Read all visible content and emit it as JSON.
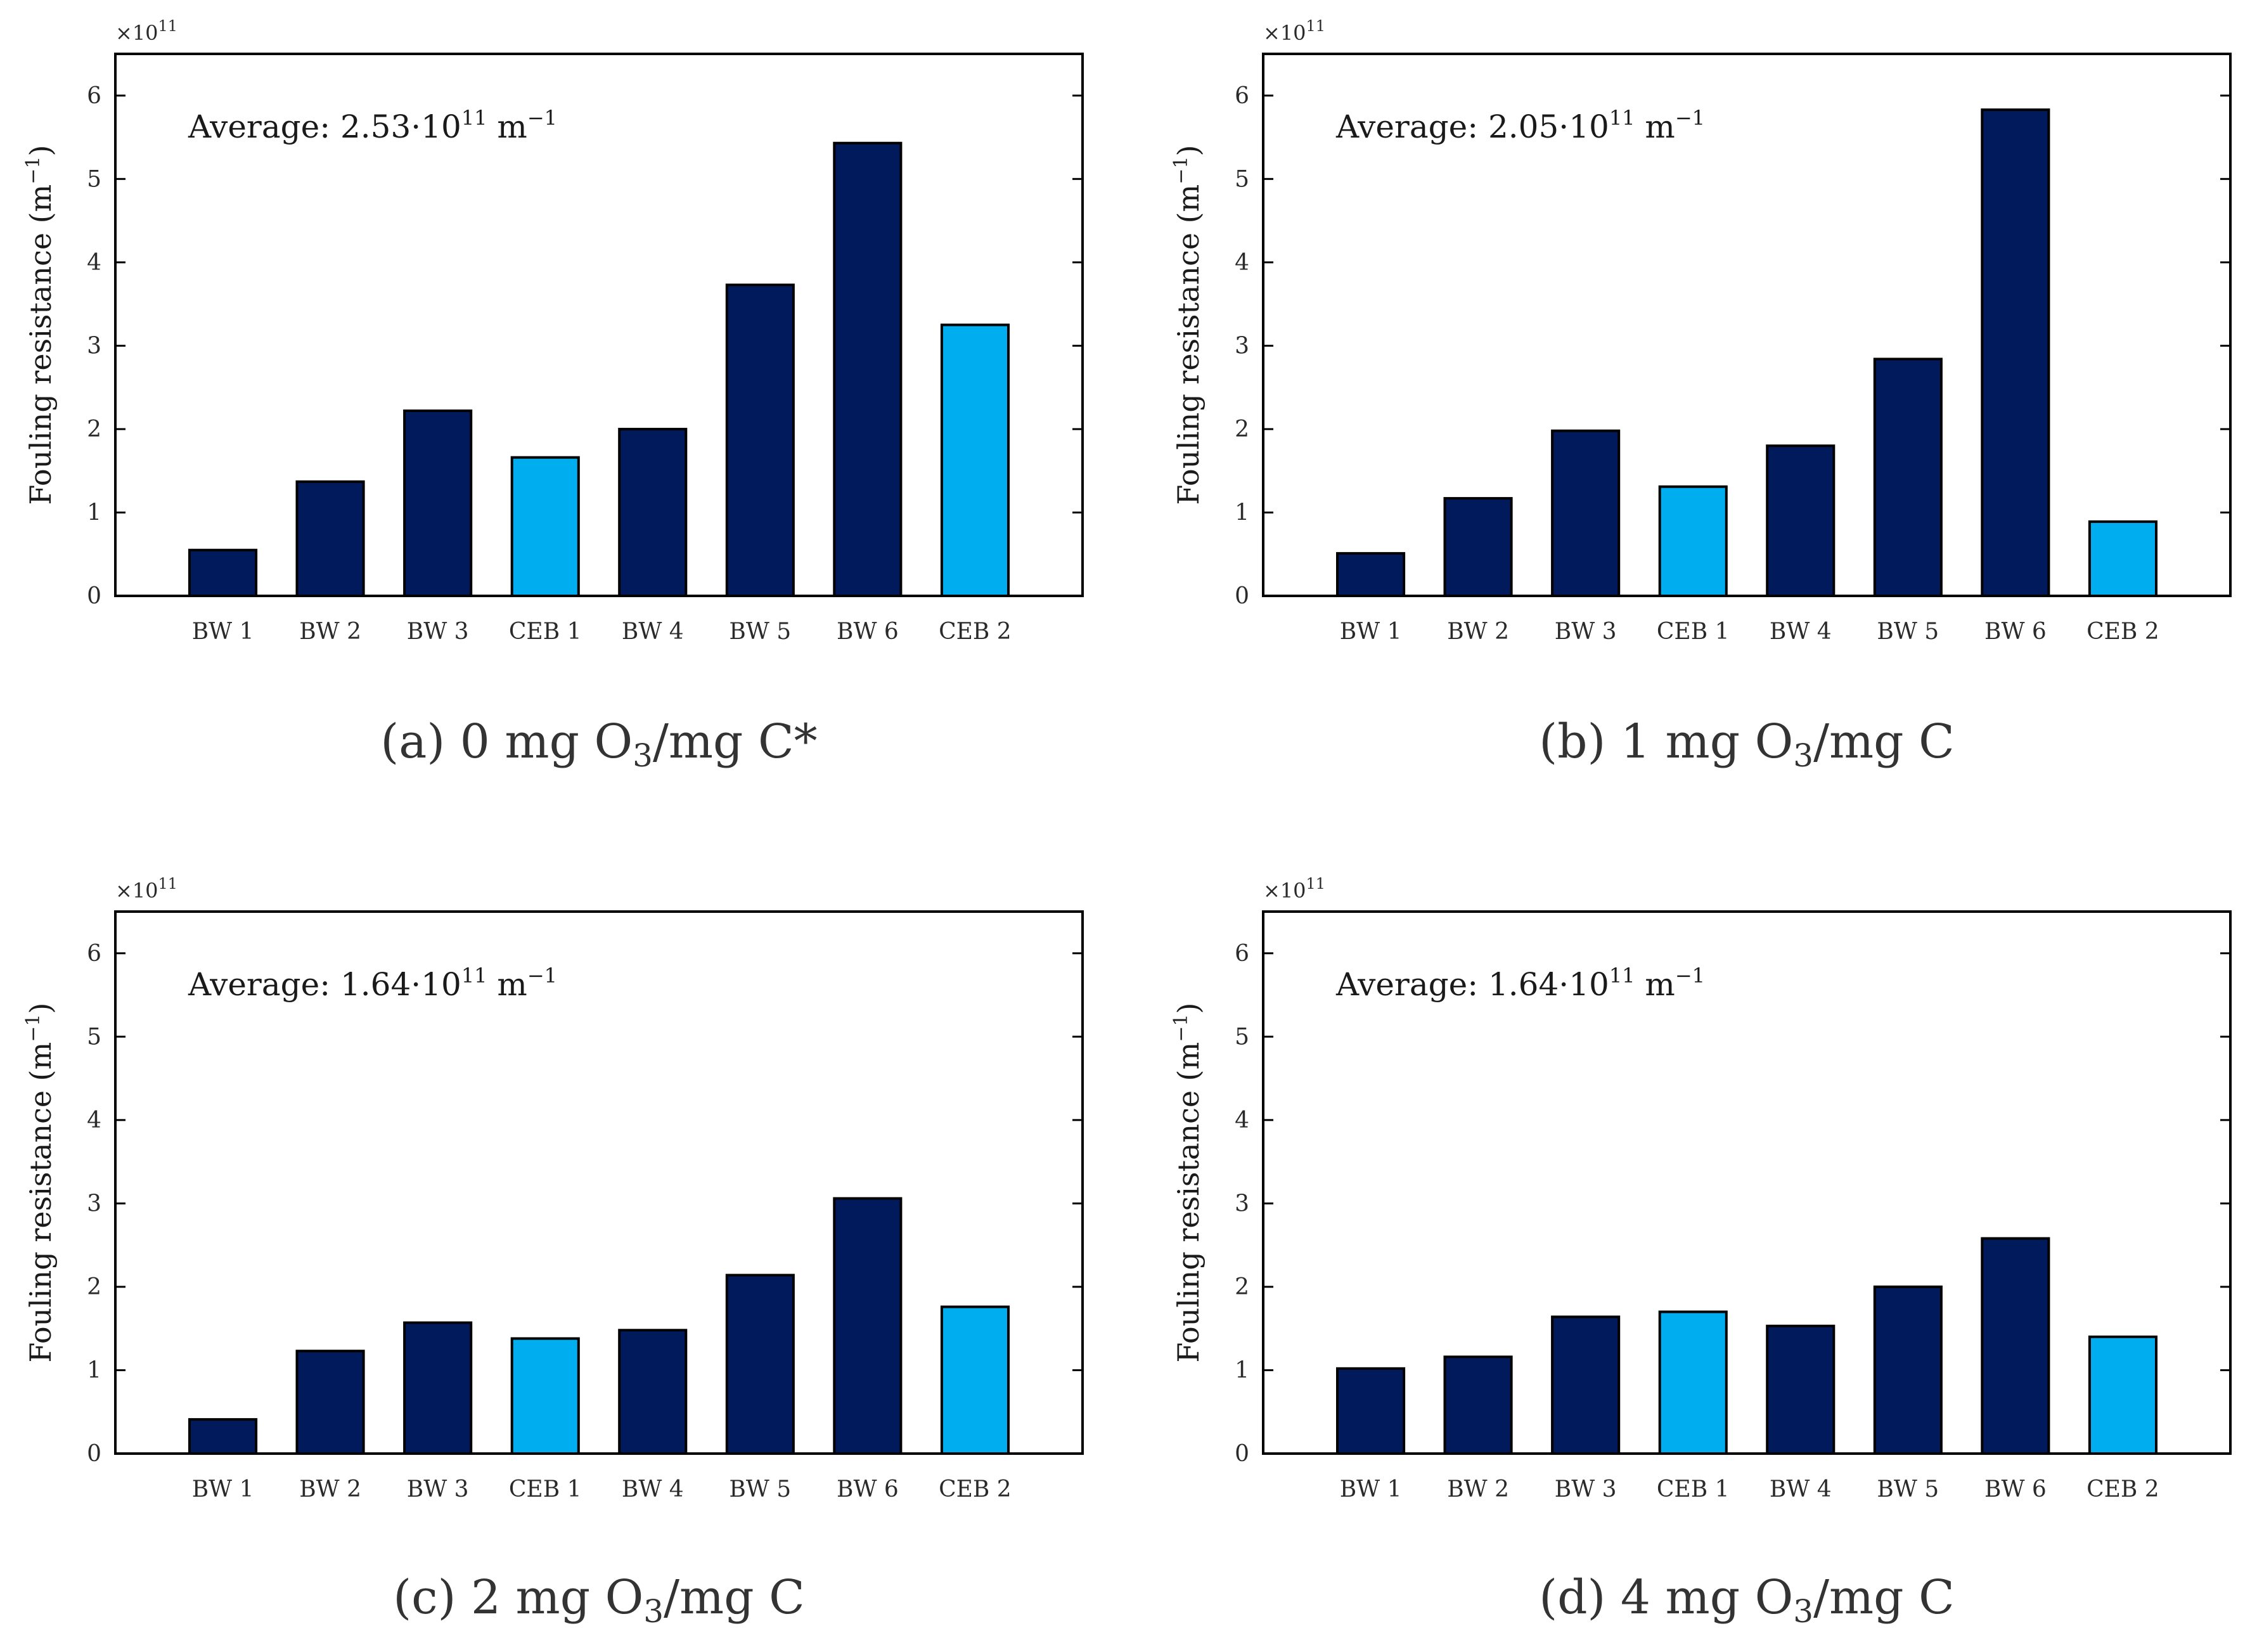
{
  "colors": {
    "bw": "#001a5c",
    "ceb": "#00aeef"
  },
  "chart_data": [
    {
      "type": "bar",
      "caption": {
        "prefix": "(a) 0 mg O",
        "sub": "3",
        "suffix": "/mg C*"
      },
      "average": {
        "prefix": "Average: 2.53·10",
        "sup": "11",
        "unit": " m",
        "unit_sup": "−1"
      },
      "ylabel": {
        "text": "Fouling resistance (m",
        "sup": "−1",
        "close": ")"
      },
      "exponent": {
        "base": "×10",
        "sup": "11"
      },
      "ylim": [
        0,
        6.5
      ],
      "yticks": [
        "0",
        "1",
        "2",
        "3",
        "4",
        "5",
        "6"
      ],
      "categories": [
        "BW 1",
        "BW 2",
        "BW 3",
        "CEB 1",
        "BW 4",
        "BW 5",
        "BW 6",
        "CEB 2"
      ],
      "kinds": [
        "bw",
        "bw",
        "bw",
        "ceb",
        "bw",
        "bw",
        "bw",
        "ceb"
      ],
      "values": [
        0.55,
        1.37,
        2.22,
        1.66,
        2.0,
        3.73,
        5.43,
        3.25
      ]
    },
    {
      "type": "bar",
      "caption": {
        "prefix": "(b) 1 mg O",
        "sub": "3",
        "suffix": "/mg C"
      },
      "average": {
        "prefix": "Average: 2.05·10",
        "sup": "11",
        "unit": " m",
        "unit_sup": "−1"
      },
      "ylabel": {
        "text": "Fouling resistance (m",
        "sup": "−1",
        "close": ")"
      },
      "exponent": {
        "base": "×10",
        "sup": "11"
      },
      "ylim": [
        0,
        6.5
      ],
      "yticks": [
        "0",
        "1",
        "2",
        "3",
        "4",
        "5",
        "6"
      ],
      "categories": [
        "BW 1",
        "BW 2",
        "BW 3",
        "CEB 1",
        "BW 4",
        "BW 5",
        "BW 6",
        "CEB 2"
      ],
      "kinds": [
        "bw",
        "bw",
        "bw",
        "ceb",
        "bw",
        "bw",
        "bw",
        "ceb"
      ],
      "values": [
        0.51,
        1.17,
        1.98,
        1.31,
        1.8,
        2.84,
        5.83,
        0.89
      ]
    },
    {
      "type": "bar",
      "caption": {
        "prefix": "(c) 2 mg O",
        "sub": "3",
        "suffix": "/mg C"
      },
      "average": {
        "prefix": "Average: 1.64·10",
        "sup": "11",
        "unit": " m",
        "unit_sup": "−1"
      },
      "ylabel": {
        "text": "Fouling resistance (m",
        "sup": "−1",
        "close": ")"
      },
      "exponent": {
        "base": "×10",
        "sup": "11"
      },
      "ylim": [
        0,
        6.5
      ],
      "yticks": [
        "0",
        "1",
        "2",
        "3",
        "4",
        "5",
        "6"
      ],
      "categories": [
        "BW 1",
        "BW 2",
        "BW 3",
        "CEB 1",
        "BW 4",
        "BW 5",
        "BW 6",
        "CEB 2"
      ],
      "kinds": [
        "bw",
        "bw",
        "bw",
        "ceb",
        "bw",
        "bw",
        "bw",
        "ceb"
      ],
      "values": [
        0.41,
        1.23,
        1.57,
        1.38,
        1.48,
        2.14,
        3.06,
        1.76
      ]
    },
    {
      "type": "bar",
      "caption": {
        "prefix": "(d) 4 mg O",
        "sub": "3",
        "suffix": "/mg C"
      },
      "average": {
        "prefix": "Average: 1.64·10",
        "sup": "11",
        "unit": " m",
        "unit_sup": "−1"
      },
      "ylabel": {
        "text": "Fouling resistance (m",
        "sup": "−1",
        "close": ")"
      },
      "exponent": {
        "base": "×10",
        "sup": "11"
      },
      "ylim": [
        0,
        6.5
      ],
      "yticks": [
        "0",
        "1",
        "2",
        "3",
        "4",
        "5",
        "6"
      ],
      "categories": [
        "BW 1",
        "BW 2",
        "BW 3",
        "CEB 1",
        "BW 4",
        "BW 5",
        "BW 6",
        "CEB 2"
      ],
      "kinds": [
        "bw",
        "bw",
        "bw",
        "ceb",
        "bw",
        "bw",
        "bw",
        "ceb"
      ],
      "values": [
        1.02,
        1.16,
        1.64,
        1.7,
        1.53,
        2.0,
        2.58,
        1.4
      ]
    }
  ]
}
